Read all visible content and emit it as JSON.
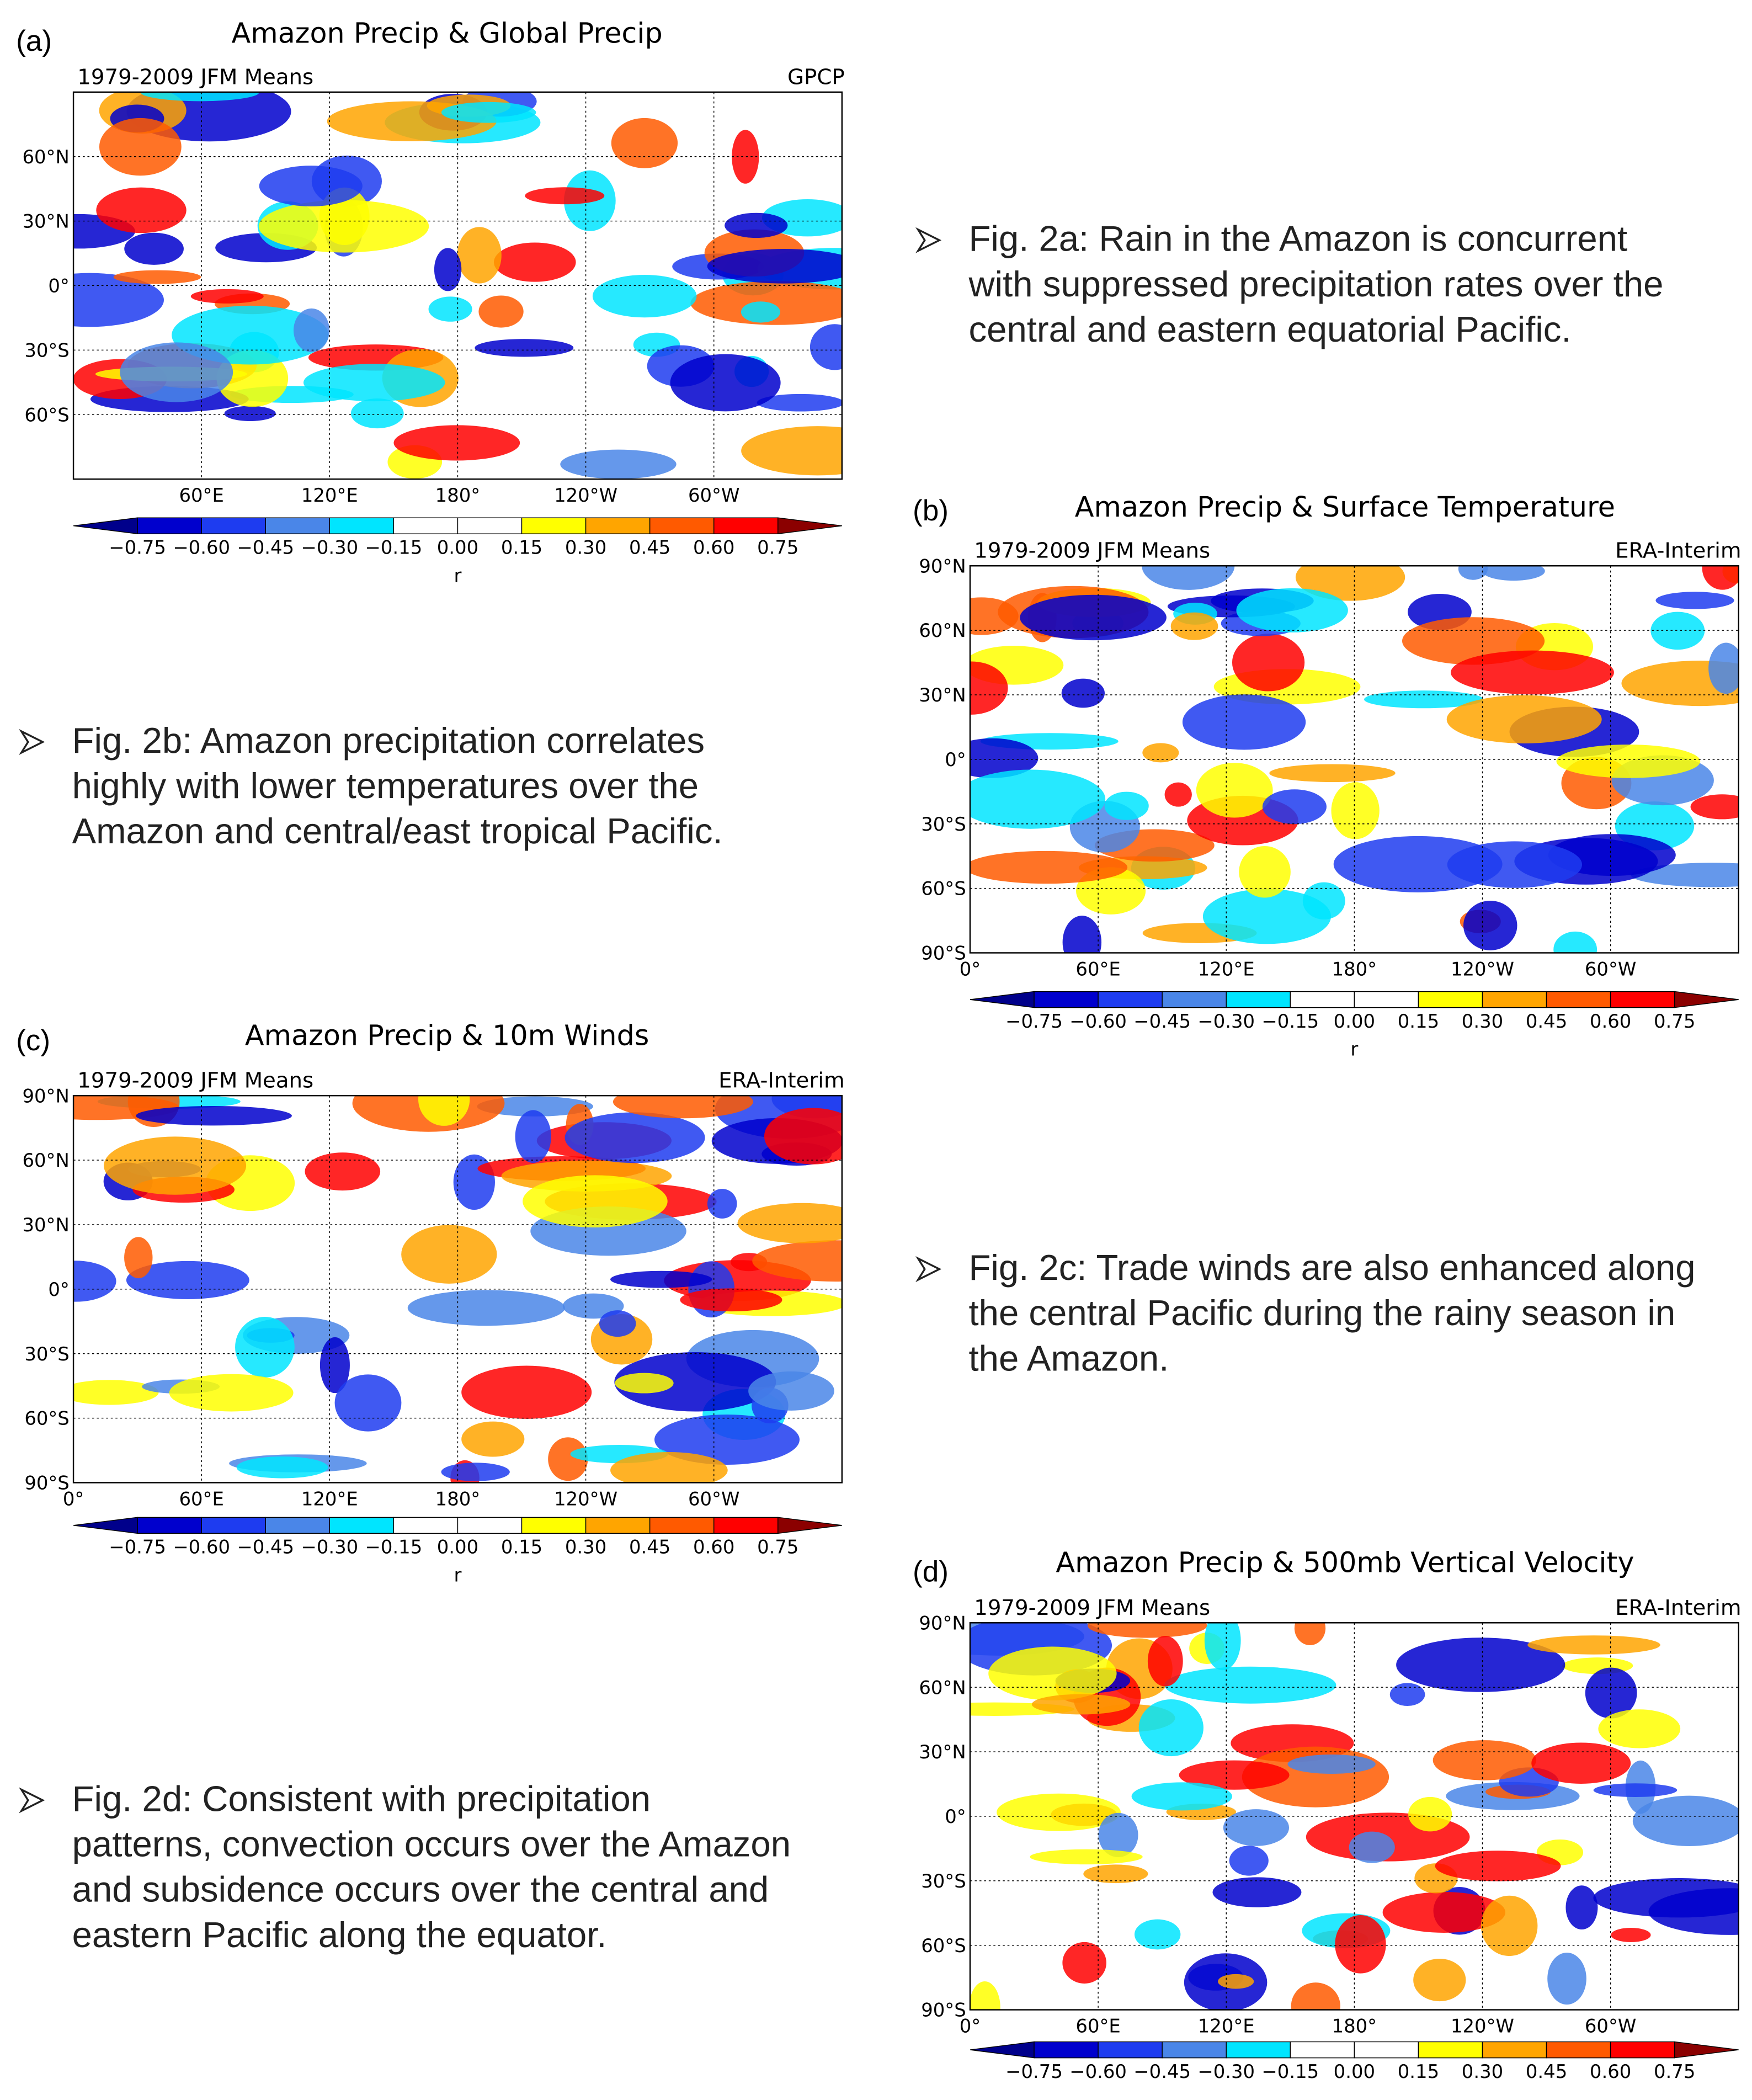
{
  "panels": [
    {
      "label": "(a)",
      "title": "Amazon Precip & Global Precip",
      "subtitle": "1979-2009 JFM Means",
      "source": "GPCP",
      "lat_ticks": [
        "60°N",
        "30°N",
        "0°",
        "30°S",
        "60°S"
      ],
      "lon_ticks": [
        "60°E",
        "120°E",
        "180°",
        "120°W",
        "60°W"
      ],
      "colorbar_ticks": [
        "−0.75",
        "−0.60",
        "−0.45",
        "−0.30",
        "−0.15",
        "0.00",
        "0.15",
        "0.30",
        "0.45",
        "0.60",
        "0.75"
      ],
      "colorbar_label": "r"
    },
    {
      "label": "(b)",
      "title": "Amazon Precip & Surface Temperature",
      "subtitle": "1979-2009 JFM Means",
      "source": "ERA-Interim",
      "lat_ticks": [
        "90°N",
        "60°N",
        "30°N",
        "0°",
        "30°S",
        "60°S",
        "90°S"
      ],
      "lon_ticks": [
        "0°",
        "60°E",
        "120°E",
        "180°",
        "120°W",
        "60°W"
      ],
      "colorbar_ticks": [
        "−0.75",
        "−0.60",
        "−0.45",
        "−0.30",
        "−0.15",
        "0.00",
        "0.15",
        "0.30",
        "0.45",
        "0.60",
        "0.75"
      ],
      "colorbar_label": "r"
    },
    {
      "label": "(c)",
      "title": "Amazon Precip & 10m Winds",
      "subtitle": "1979-2009 JFM Means",
      "source": "ERA-Interim",
      "lat_ticks": [
        "90°N",
        "60°N",
        "30°N",
        "0°",
        "30°S",
        "60°S",
        "90°S"
      ],
      "lon_ticks": [
        "0°",
        "60°E",
        "120°E",
        "180°",
        "120°W",
        "60°W"
      ],
      "colorbar_ticks": [
        "−0.75",
        "−0.60",
        "−0.45",
        "−0.30",
        "−0.15",
        "0.00",
        "0.15",
        "0.30",
        "0.45",
        "0.60",
        "0.75"
      ],
      "colorbar_label": "r"
    },
    {
      "label": "(d)",
      "title": "Amazon Precip & 500mb Vertical Velocity",
      "subtitle": "1979-2009 JFM Means",
      "source": "ERA-Interim",
      "lat_ticks": [
        "90°N",
        "60°N",
        "30°N",
        "0°",
        "30°S",
        "60°S",
        "90°S"
      ],
      "lon_ticks": [
        "0°",
        "60°E",
        "120°E",
        "180°",
        "120°W",
        "60°W"
      ],
      "colorbar_ticks": [
        "−0.75",
        "−0.60",
        "−0.45",
        "−0.30",
        "−0.15",
        "0.00",
        "0.15",
        "0.30",
        "0.45",
        "0.60",
        "0.75"
      ]
    }
  ],
  "bullets": [
    {
      "lines": [
        "Fig. 2a: Rain in the Amazon is concurrent",
        "with suppressed precipitation rates over the",
        "central and eastern equatorial Pacific."
      ]
    },
    {
      "lines": [
        "Fig. 2b: Amazon precipitation correlates",
        "highly with lower temperatures over the",
        "Amazon and central/east tropical Pacific."
      ]
    },
    {
      "lines": [
        "Fig. 2c: Trade winds are also enhanced along",
        "the central Pacific during the rainy season in",
        "the Amazon."
      ]
    },
    {
      "lines": [
        "Fig. 2d: Consistent with precipitation",
        "patterns, convection occurs over the Amazon",
        "and subsidence occurs over the central and",
        "eastern Pacific along the equator."
      ]
    }
  ]
}
